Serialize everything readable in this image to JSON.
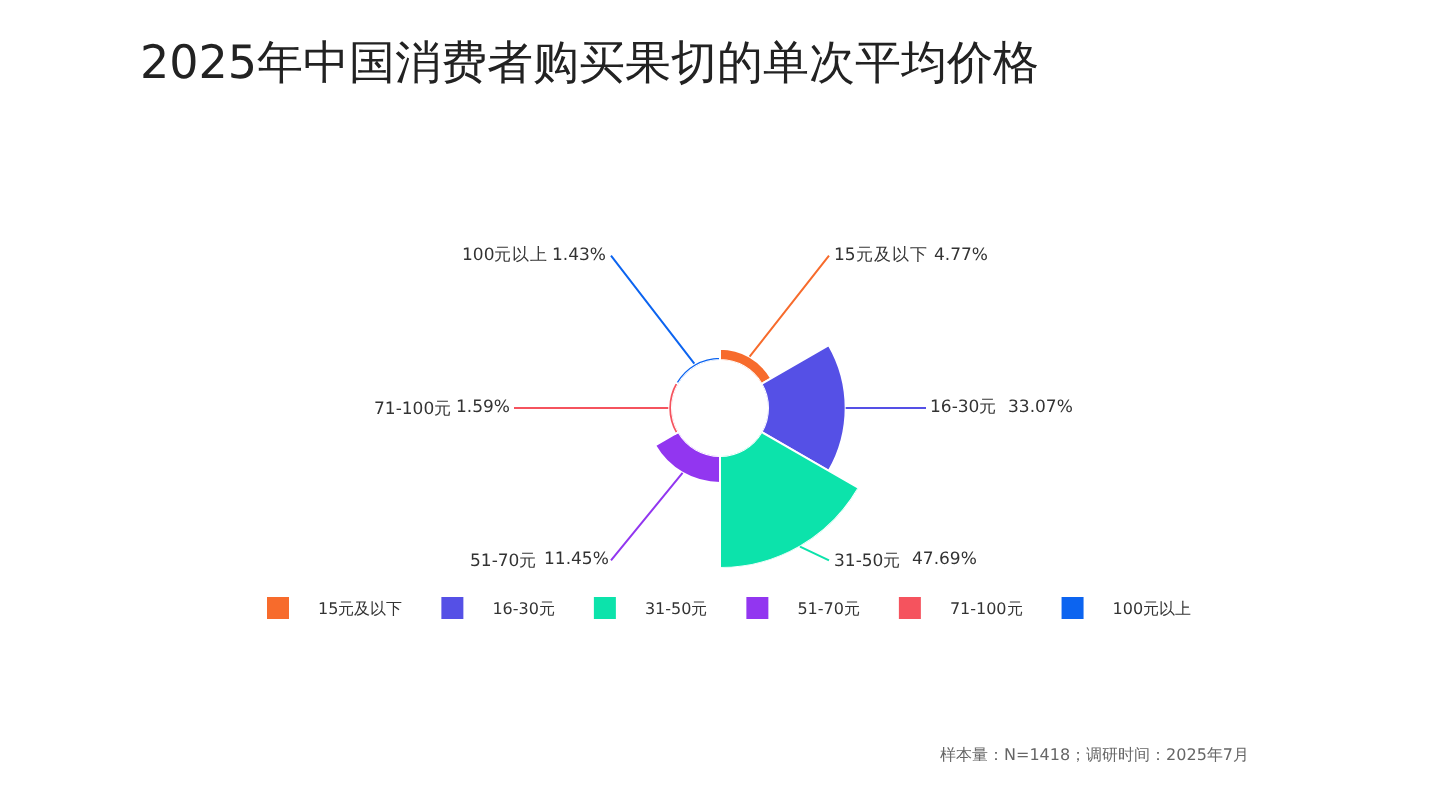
{
  "chart_data": {
    "type": "other",
    "title": "2025年中国消费者购买果切的单次平均价格",
    "series": [
      {
        "name": "15元及以下",
        "color": "#f76b2c",
        "values": [
          4.77
        ],
        "value_labels": [
          "4.77%"
        ]
      },
      {
        "name": "16-30元",
        "color": "#5550e6",
        "values": [
          33.07
        ],
        "value_labels": [
          "33.07%"
        ]
      },
      {
        "name": "31-50元",
        "color": "#0ce3ab",
        "values": [
          47.69
        ],
        "value_labels": [
          "47.69%"
        ]
      },
      {
        "name": "51-70元",
        "color": "#9236f0",
        "values": [
          11.45
        ],
        "value_labels": [
          "11.45%"
        ]
      },
      {
        "name": "71-100元",
        "color": "#f5535e",
        "values": [
          1.59
        ],
        "value_labels": [
          "1.59%"
        ]
      },
      {
        "name": "100元以上",
        "color": "#0c64f0",
        "values": [
          1.43
        ],
        "value_labels": [
          "1.43%"
        ]
      }
    ],
    "legend": "bottom",
    "annotations": [
      "样本量：N=1418；调研时间：2025年7月"
    ]
  }
}
